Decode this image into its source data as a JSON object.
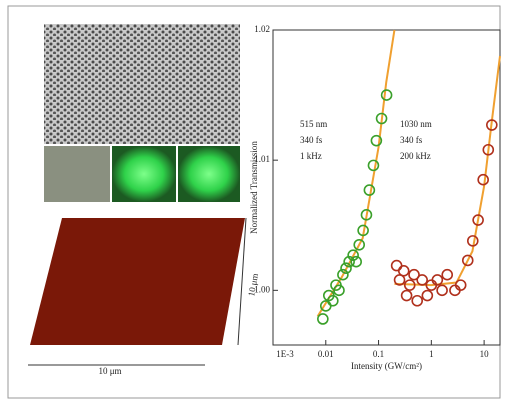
{
  "chart_data": {
    "type": "scatter",
    "xlabel": "Intensity (GW/cm²)",
    "ylabel": "Normalized Transmission",
    "xscale": "log",
    "xlim": [
      0.001,
      20
    ],
    "ylim": [
      0.9958,
      1.02
    ],
    "xticks": [
      {
        "value": 0.001,
        "label": "1E-3"
      },
      0.01,
      0.1,
      1,
      10
    ],
    "yticks": [
      {
        "value": 1.0,
        "label": "1.00"
      },
      1.01,
      1.02
    ],
    "annotations": [
      [
        "515 nm",
        "340 fs",
        "1 kHz"
      ],
      [
        "1030 nm",
        "340 fs",
        "200 kHz"
      ]
    ],
    "series": [
      {
        "color": "#3aa02a",
        "x": [
          0.0088,
          0.01,
          0.0114,
          0.0136,
          0.0156,
          0.0178,
          0.0211,
          0.0242,
          0.0277,
          0.033,
          0.0377,
          0.043,
          0.051,
          0.059,
          0.067,
          0.08,
          0.091,
          0.114,
          0.142
        ],
        "values": [
          0.9978,
          0.9988,
          0.9996,
          0.9992,
          1.0004,
          1.0,
          1.0012,
          1.0017,
          1.0022,
          1.0027,
          1.0022,
          1.0035,
          1.0046,
          1.0058,
          1.0077,
          1.0096,
          1.0115,
          1.0132,
          1.015
        ]
      },
      {
        "color": "#b0301c",
        "x": [
          0.22,
          0.25,
          0.3,
          0.34,
          0.39,
          0.47,
          0.54,
          0.67,
          0.84,
          1.0,
          1.3,
          1.6,
          2.0,
          2.8,
          3.6,
          4.9,
          6.1,
          7.7,
          9.6,
          12,
          14
        ],
        "values": [
          1.0019,
          1.0008,
          1.0015,
          0.9996,
          1.0004,
          1.0012,
          0.9992,
          1.0008,
          0.9996,
          1.0004,
          1.0008,
          1.0,
          1.0012,
          1.0,
          1.0004,
          1.0023,
          1.0038,
          1.0054,
          1.0085,
          1.0108,
          1.0127
        ]
      }
    ],
    "fits": [
      {
        "color": "#f0a030",
        "x": [
          0.007,
          0.02,
          0.05,
          0.1,
          0.14,
          0.2
        ],
        "values": [
          0.998,
          1.001,
          1.004,
          1.011,
          1.016,
          1.02
        ]
      },
      {
        "color": "#f0a030",
        "x": [
          0.2,
          1,
          3,
          6,
          10,
          14,
          20
        ],
        "values": [
          1.0005,
          1.0004,
          1.0006,
          1.003,
          1.008,
          1.013,
          1.018
        ]
      }
    ]
  },
  "images": {
    "scale_x": "10 μm",
    "scale_y": "10 μm"
  }
}
